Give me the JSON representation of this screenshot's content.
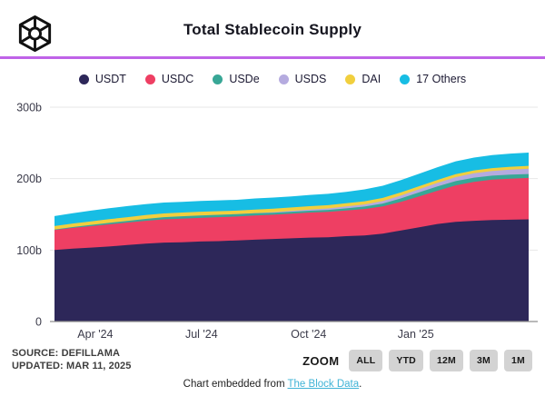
{
  "header": {
    "title": "Total Stablecoin Supply",
    "accent_line_color": "#bf63e8",
    "logo_icon": "the-block-logo"
  },
  "chart_data": {
    "type": "area",
    "stacked": true,
    "title": "Total Stablecoin Supply",
    "xlabel": "",
    "ylabel": "",
    "unit": "billions USD",
    "ylim": [
      0,
      300
    ],
    "grid": "horizontal",
    "legend_position": "top",
    "y_ticks": [
      {
        "label": "0",
        "value": 0
      },
      {
        "label": "100b",
        "value": 100
      },
      {
        "label": "200b",
        "value": 200
      },
      {
        "label": "300b",
        "value": 300
      }
    ],
    "x_ticks": [
      {
        "label": "Apr '24",
        "pos": 0.086
      },
      {
        "label": "Jul '24",
        "pos": 0.31
      },
      {
        "label": "Oct '24",
        "pos": 0.536
      },
      {
        "label": "Jan '25",
        "pos": 0.762
      }
    ],
    "series": [
      {
        "name": "USDT",
        "color": "#2d2759",
        "values": [
          100,
          102,
          103.5,
          105,
          107,
          109,
          110.5,
          111,
          112,
          112.5,
          113.5,
          114.5,
          115.5,
          116.5,
          117.5,
          118,
          119.5,
          120.5,
          123,
          127.5,
          132,
          136.5,
          139.5,
          141,
          142,
          142.5,
          143
        ]
      },
      {
        "name": "USDC",
        "color": "#ee3f63",
        "values": [
          28,
          29,
          30,
          31,
          31.5,
          32,
          32.5,
          33,
          33,
          33.5,
          33.5,
          34,
          34,
          34.5,
          35,
          35.5,
          36,
          37,
          38,
          40,
          43,
          46.5,
          51,
          54.5,
          56.5,
          57.5,
          58
        ]
      },
      {
        "name": "USDe",
        "color": "#38a796",
        "values": [
          0.8,
          1.2,
          1.7,
          2.1,
          2.4,
          2.7,
          3,
          3.3,
          3.5,
          3.4,
          3.2,
          3,
          2.8,
          2.7,
          2.6,
          2.7,
          2.9,
          3.4,
          4.1,
          4.9,
          5.7,
          6,
          6,
          5.8,
          5.6,
          5.5,
          5.4
        ]
      },
      {
        "name": "USDS",
        "color": "#b5abdf",
        "values": [
          0,
          0,
          0,
          0,
          0,
          0,
          0,
          0,
          0,
          0,
          0,
          0.3,
          0.8,
          1.2,
          1.7,
          2.1,
          2.6,
          3,
          3.5,
          4,
          4.5,
          5,
          5.6,
          6.1,
          6.6,
          7.1,
          7.5
        ]
      },
      {
        "name": "DAI",
        "color": "#f1cf3e",
        "values": [
          4.8,
          4.9,
          5,
          5.1,
          5.2,
          5.3,
          5.3,
          5.2,
          5.2,
          5.1,
          5,
          5,
          4.9,
          4.8,
          4.7,
          4.6,
          4.5,
          4.4,
          4.4,
          4.3,
          4.2,
          4.2,
          4.1,
          4.1,
          4,
          4,
          4
        ]
      },
      {
        "name": "17 Others",
        "color": "#17bde4",
        "values": [
          14,
          14.6,
          15,
          15.3,
          15.5,
          15.4,
          15.2,
          15.1,
          15,
          15.1,
          15.2,
          15.4,
          15.5,
          15.5,
          15.7,
          15.8,
          16,
          16.6,
          17,
          17.4,
          17.6,
          17.8,
          18,
          18,
          18.2,
          18.4,
          18.5
        ]
      }
    ]
  },
  "footer": {
    "source_line1": "SOURCE: DEFILLAMA",
    "source_line2": "UPDATED: MAR 11, 2025",
    "zoom_label": "ZOOM",
    "zoom_buttons": [
      "ALL",
      "YTD",
      "12M",
      "3M",
      "1M"
    ],
    "embed_prefix": "Chart embedded from ",
    "embed_link": "The Block Data",
    "embed_suffix": ".",
    "link_color": "#3fb3d6"
  }
}
